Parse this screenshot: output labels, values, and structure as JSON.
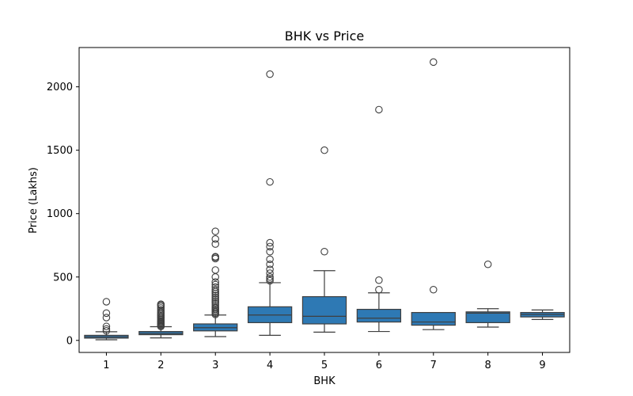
{
  "chart_data": {
    "type": "box",
    "title": "BHK vs Price",
    "xlabel": "BHK",
    "ylabel": "Price (Lakhs)",
    "categories": [
      "1",
      "2",
      "3",
      "4",
      "5",
      "6",
      "7",
      "8",
      "9"
    ],
    "yticks": [
      0,
      500,
      1000,
      1500,
      2000
    ],
    "ylim": [
      -95,
      2310
    ],
    "grid": false,
    "box_color": "#2e79b4",
    "edge_color": "#3f3f3f",
    "boxes": [
      {
        "category": "1",
        "whisker_low": 5,
        "q1": 18,
        "median": 28,
        "q3": 40,
        "whisker_high": 68,
        "outliers": [
          75,
          90,
          110,
          180,
          215,
          305
        ]
      },
      {
        "category": "2",
        "whisker_low": 20,
        "q1": 45,
        "median": 55,
        "q3": 70,
        "whisker_high": 108,
        "outliers": [
          110,
          118,
          125,
          132,
          140,
          148,
          155,
          165,
          175,
          185,
          195,
          205,
          215,
          225,
          240,
          255,
          268,
          278,
          285
        ]
      },
      {
        "category": "3",
        "whisker_low": 30,
        "q1": 75,
        "median": 100,
        "q3": 130,
        "whisker_high": 200,
        "outliers": [
          205,
          215,
          225,
          235,
          245,
          255,
          265,
          280,
          295,
          310,
          325,
          340,
          355,
          370,
          385,
          400,
          420,
          440,
          460,
          500,
          555,
          645,
          655,
          660,
          760,
          800,
          860
        ]
      },
      {
        "category": "4",
        "whisker_low": 40,
        "q1": 140,
        "median": 200,
        "q3": 265,
        "whisker_high": 455,
        "outliers": [
          470,
          485,
          500,
          530,
          560,
          600,
          640,
          700,
          740,
          770,
          1250,
          2100
        ]
      },
      {
        "category": "5",
        "whisker_low": 65,
        "q1": 130,
        "median": 190,
        "q3": 345,
        "whisker_high": 550,
        "outliers": [
          700,
          1500
        ]
      },
      {
        "category": "6",
        "whisker_low": 70,
        "q1": 145,
        "median": 175,
        "q3": 245,
        "whisker_high": 375,
        "outliers": [
          400,
          475,
          1820
        ]
      },
      {
        "category": "7",
        "whisker_low": 85,
        "q1": 120,
        "median": 145,
        "q3": 220,
        "whisker_high": 220,
        "outliers": [
          400,
          2195
        ]
      },
      {
        "category": "8",
        "whisker_low": 105,
        "q1": 140,
        "median": 215,
        "q3": 225,
        "whisker_high": 250,
        "outliers": [
          600
        ]
      },
      {
        "category": "9",
        "whisker_low": 165,
        "q1": 185,
        "median": 205,
        "q3": 220,
        "whisker_high": 240,
        "outliers": []
      }
    ]
  }
}
